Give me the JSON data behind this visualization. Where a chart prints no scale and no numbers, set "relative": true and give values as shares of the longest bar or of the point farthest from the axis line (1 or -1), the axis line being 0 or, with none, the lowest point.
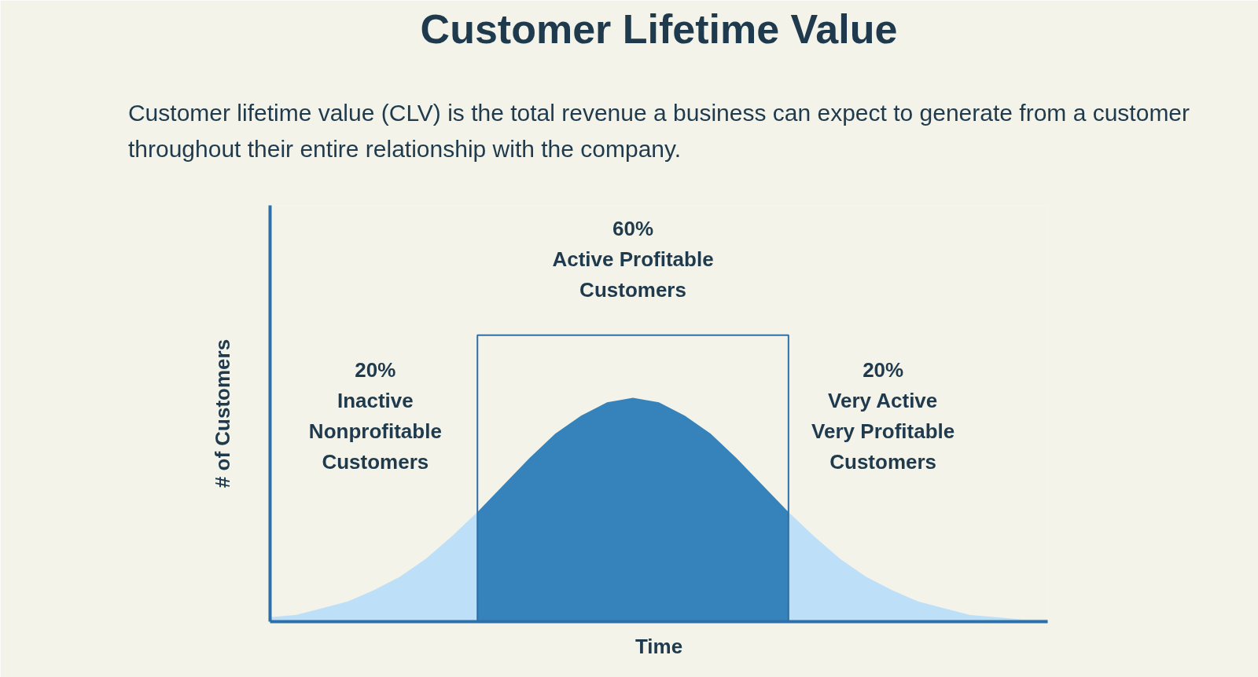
{
  "chart_data": {
    "type": "area",
    "title": "Customer Lifetime Value",
    "subtitle": "Customer lifetime value (CLV) is the total revenue a business can expect to generate from a customer\nthroughout their entire relationship with the company.",
    "xlabel": "Time",
    "ylabel": "# of Customers",
    "relative": true,
    "grid": false,
    "categories": [
      null,
      null,
      null,
      null,
      null,
      null,
      null,
      null,
      null,
      null,
      null,
      null,
      null,
      null,
      null,
      null,
      null,
      null,
      null,
      null,
      null,
      null,
      null,
      null,
      null,
      null,
      null,
      null,
      null,
      null,
      null
    ],
    "series": [
      {
        "color": "#bde0f8",
        "values": [
          0.02,
          0.03,
          0.06,
          0.09,
          0.14,
          0.2,
          0.28,
          0.38,
          0.49,
          null,
          null,
          null,
          null,
          null,
          null,
          null,
          null,
          null,
          null,
          null,
          0.49,
          0.38,
          0.28,
          0.2,
          0.14,
          0.09,
          0.06,
          0.03,
          0.02,
          0.01,
          0.01
        ]
      },
      {
        "color": "#3682bb",
        "values": [
          null,
          null,
          null,
          null,
          null,
          null,
          null,
          null,
          0.49,
          0.61,
          0.73,
          0.84,
          0.92,
          0.98,
          1,
          0.98,
          0.92,
          0.84,
          0.73,
          0.61,
          0.49,
          null,
          null,
          null,
          null,
          null,
          null,
          null,
          null,
          null,
          null
        ]
      }
    ],
    "annotations": [
      "60%\nActive Profitable\nCustomers",
      "20%\nInactive\nNonprofitable\nCustomers",
      "20%\nVery Active\nVery Profitable\nCustomers"
    ]
  }
}
